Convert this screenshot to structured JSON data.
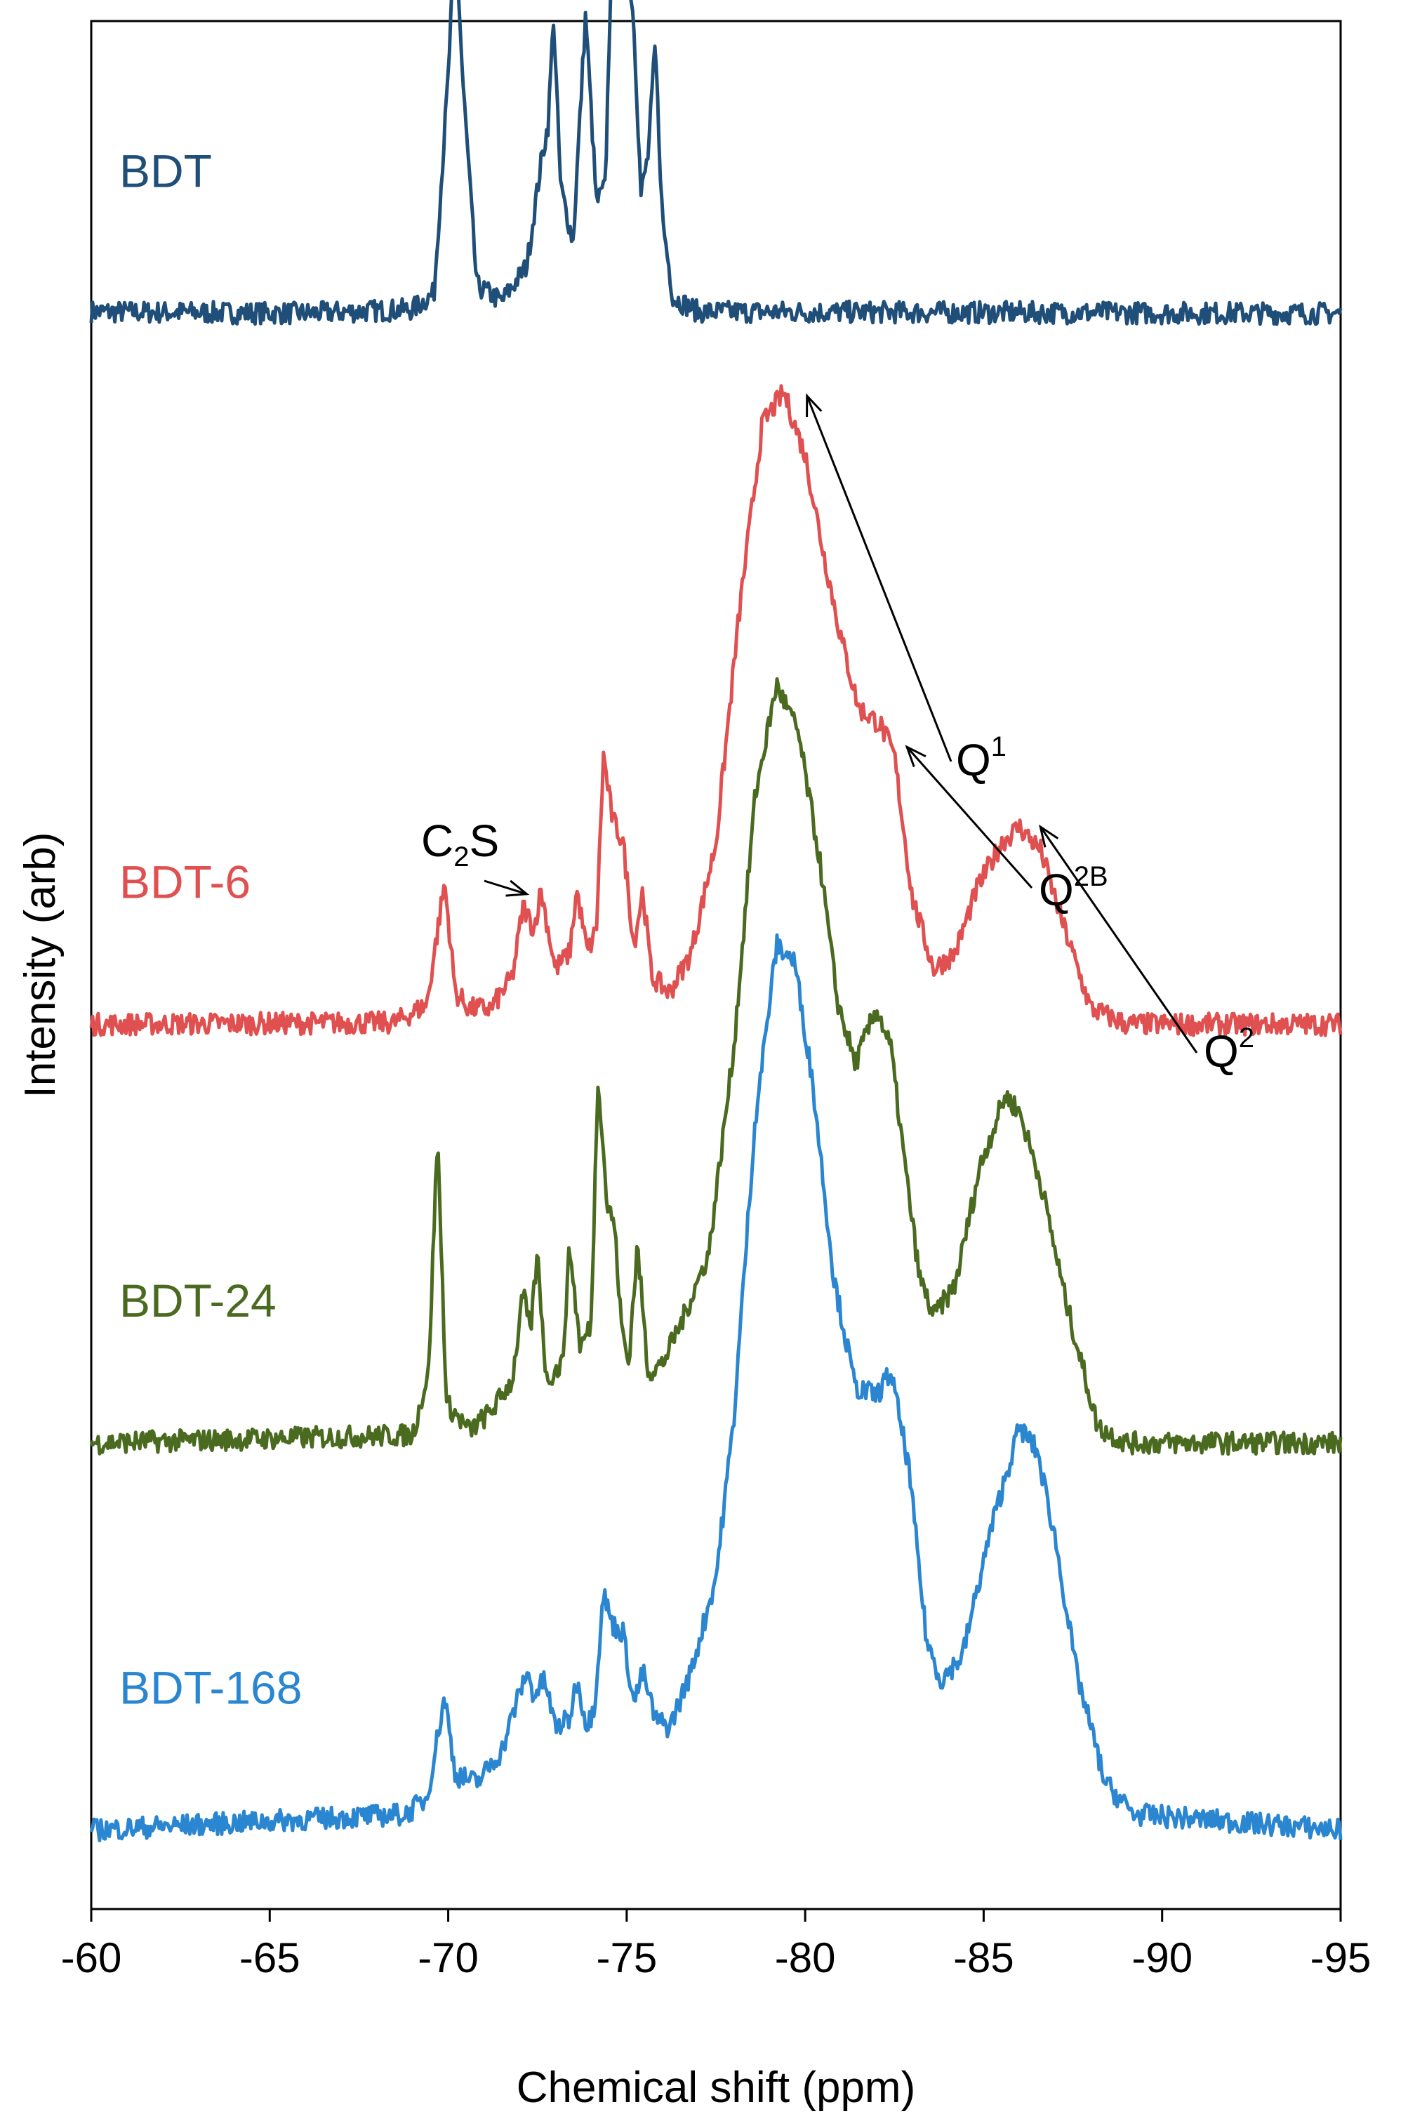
{
  "chart_data": {
    "type": "line",
    "title": "",
    "xlabel": "Chemical shift (ppm)",
    "ylabel": "Intensity (arb)",
    "xlim": [
      -60,
      -95
    ],
    "x_reversed": true,
    "x_ticks": [
      -60,
      -65,
      -70,
      -75,
      -80,
      -85,
      -90,
      -95
    ],
    "y_ticks": false,
    "grid": false,
    "legend": "none",
    "stacked_offset": true,
    "series": [
      {
        "name": "BDT",
        "color": "#1f4e79",
        "baseline": 9.0,
        "points": [
          [
            -60,
            0.02
          ],
          [
            -66,
            0
          ],
          [
            -69,
            0.05
          ],
          [
            -69.6,
            0.25
          ],
          [
            -70.0,
            3.0
          ],
          [
            -70.2,
            4.9
          ],
          [
            -70.4,
            3.0
          ],
          [
            -70.8,
            0.35
          ],
          [
            -71.5,
            0.15
          ],
          [
            -72.2,
            0.6
          ],
          [
            -72.6,
            1.9
          ],
          [
            -72.8,
            2.4
          ],
          [
            -72.95,
            3.75
          ],
          [
            -73.15,
            1.6
          ],
          [
            -73.5,
            0.9
          ],
          [
            -73.85,
            3.8
          ],
          [
            -74.15,
            1.4
          ],
          [
            -74.4,
            1.6
          ],
          [
            -74.6,
            5.0
          ],
          [
            -74.75,
            8.2
          ],
          [
            -74.9,
            5.2
          ],
          [
            -75.0,
            4.5
          ],
          [
            -75.2,
            3.7
          ],
          [
            -75.4,
            1.5
          ],
          [
            -75.6,
            2.0
          ],
          [
            -75.8,
            3.4
          ],
          [
            -76.0,
            1.2
          ],
          [
            -76.3,
            0.2
          ],
          [
            -77,
            0.02
          ],
          [
            -95,
            0
          ]
        ]
      },
      {
        "name": "BDT-6",
        "color": "#e05050",
        "baseline": 0.0,
        "points": [
          [
            -60,
            0
          ],
          [
            -68.5,
            0.02
          ],
          [
            -69.4,
            0.25
          ],
          [
            -69.9,
            1.8
          ],
          [
            -70.2,
            0.4
          ],
          [
            -70.6,
            0.2
          ],
          [
            -71.2,
            0.2
          ],
          [
            -71.8,
            0.6
          ],
          [
            -72.1,
            1.5
          ],
          [
            -72.4,
            1.2
          ],
          [
            -72.6,
            1.7
          ],
          [
            -73.0,
            0.7
          ],
          [
            -73.4,
            0.9
          ],
          [
            -73.6,
            1.7
          ],
          [
            -73.9,
            0.9
          ],
          [
            -74.15,
            1.2
          ],
          [
            -74.35,
            3.4
          ],
          [
            -74.6,
            2.6
          ],
          [
            -74.9,
            2.3
          ],
          [
            -75.2,
            1.0
          ],
          [
            -75.45,
            1.7
          ],
          [
            -75.7,
            0.6
          ],
          [
            -76.2,
            0.4
          ],
          [
            -76.8,
            0.9
          ],
          [
            -77.5,
            2.3
          ],
          [
            -78.2,
            5.4
          ],
          [
            -78.8,
            7.6
          ],
          [
            -79.4,
            8.0
          ],
          [
            -80.0,
            7.2
          ],
          [
            -80.5,
            6.0
          ],
          [
            -81.0,
            4.9
          ],
          [
            -81.5,
            4.0
          ],
          [
            -82.1,
            3.8
          ],
          [
            -82.5,
            3.4
          ],
          [
            -83.0,
            1.6
          ],
          [
            -83.6,
            0.7
          ],
          [
            -84.2,
            0.9
          ],
          [
            -84.8,
            1.7
          ],
          [
            -85.5,
            2.3
          ],
          [
            -86.0,
            2.5
          ],
          [
            -86.6,
            2.2
          ],
          [
            -87.2,
            1.3
          ],
          [
            -88.0,
            0.2
          ],
          [
            -89,
            0
          ],
          [
            -95,
            0
          ]
        ]
      },
      {
        "name": "BDT-24",
        "color": "#4a6b1f",
        "baseline": -5.3,
        "points": [
          [
            -60,
            0
          ],
          [
            -69,
            0.1
          ],
          [
            -69.45,
            0.9
          ],
          [
            -69.7,
            3.9
          ],
          [
            -69.95,
            0.5
          ],
          [
            -70.6,
            0.15
          ],
          [
            -71.2,
            0.4
          ],
          [
            -71.8,
            0.8
          ],
          [
            -72.1,
            1.9
          ],
          [
            -72.3,
            1.4
          ],
          [
            -72.5,
            2.4
          ],
          [
            -72.75,
            0.8
          ],
          [
            -73.2,
            1.0
          ],
          [
            -73.4,
            2.5
          ],
          [
            -73.7,
            1.2
          ],
          [
            -74.0,
            1.5
          ],
          [
            -74.2,
            4.7
          ],
          [
            -74.45,
            3.0
          ],
          [
            -74.65,
            2.8
          ],
          [
            -74.85,
            1.5
          ],
          [
            -75.05,
            1.0
          ],
          [
            -75.3,
            2.5
          ],
          [
            -75.6,
            0.9
          ],
          [
            -76.0,
            1.0
          ],
          [
            -76.6,
            1.6
          ],
          [
            -77.3,
            2.4
          ],
          [
            -78.0,
            5.0
          ],
          [
            -78.6,
            8.2
          ],
          [
            -79.2,
            9.6
          ],
          [
            -79.8,
            9.0
          ],
          [
            -80.4,
            7.4
          ],
          [
            -80.9,
            5.6
          ],
          [
            -81.4,
            4.8
          ],
          [
            -82.0,
            5.5
          ],
          [
            -82.4,
            5.0
          ],
          [
            -82.8,
            3.5
          ],
          [
            -83.2,
            2.1
          ],
          [
            -83.6,
            1.6
          ],
          [
            -84.2,
            2.0
          ],
          [
            -84.9,
            3.5
          ],
          [
            -85.6,
            4.4
          ],
          [
            -86.0,
            4.2
          ],
          [
            -86.6,
            3.3
          ],
          [
            -87.3,
            1.8
          ],
          [
            -88.2,
            0.2
          ],
          [
            -89,
            0
          ],
          [
            -95,
            0
          ]
        ]
      },
      {
        "name": "BDT-168",
        "color": "#2a86d0",
        "baseline": -10.2,
        "points": [
          [
            -60,
            0
          ],
          [
            -68.8,
            0.2
          ],
          [
            -69.4,
            0.4
          ],
          [
            -69.9,
            1.7
          ],
          [
            -70.2,
            0.7
          ],
          [
            -70.8,
            0.6
          ],
          [
            -71.5,
            1.0
          ],
          [
            -71.9,
            1.6
          ],
          [
            -72.2,
            2.0
          ],
          [
            -72.4,
            1.7
          ],
          [
            -72.7,
            1.9
          ],
          [
            -73.0,
            1.3
          ],
          [
            -73.4,
            1.4
          ],
          [
            -73.6,
            1.9
          ],
          [
            -73.9,
            1.3
          ],
          [
            -74.1,
            1.6
          ],
          [
            -74.35,
            3.0
          ],
          [
            -74.6,
            2.6
          ],
          [
            -74.9,
            2.5
          ],
          [
            -75.2,
            1.6
          ],
          [
            -75.45,
            2.0
          ],
          [
            -75.8,
            1.4
          ],
          [
            -76.2,
            1.3
          ],
          [
            -76.8,
            2.0
          ],
          [
            -77.5,
            3.2
          ],
          [
            -78.0,
            5.2
          ],
          [
            -78.6,
            9.0
          ],
          [
            -79.2,
            11.2
          ],
          [
            -79.7,
            11.0
          ],
          [
            -80.2,
            9.5
          ],
          [
            -80.8,
            7.0
          ],
          [
            -81.4,
            5.6
          ],
          [
            -82.0,
            5.5
          ],
          [
            -82.4,
            5.8
          ],
          [
            -82.9,
            4.6
          ],
          [
            -83.4,
            2.4
          ],
          [
            -83.8,
            1.9
          ],
          [
            -84.4,
            2.2
          ],
          [
            -85.2,
            3.8
          ],
          [
            -86.0,
            5.1
          ],
          [
            -86.5,
            4.8
          ],
          [
            -87.0,
            3.7
          ],
          [
            -87.6,
            2.0
          ],
          [
            -88.4,
            0.6
          ],
          [
            -89.2,
            0.2
          ],
          [
            -95,
            0
          ]
        ]
      }
    ],
    "labels": [
      {
        "text": "BDT",
        "series": "BDT"
      },
      {
        "text": "BDT-6",
        "series": "BDT-6"
      },
      {
        "text": "BDT-24",
        "series": "BDT-24"
      },
      {
        "text": "BDT-168",
        "series": "BDT-168"
      }
    ],
    "annotations": [
      {
        "text": "C",
        "sub": "2",
        "text2": "S",
        "points_to": {
          "series": "BDT-6",
          "x": -72.2
        }
      },
      {
        "text": "Q",
        "sup": "1",
        "points_to": {
          "series": "BDT-6",
          "x": -79.5
        }
      },
      {
        "text": "Q",
        "sup": "2B",
        "points_to": {
          "series": "BDT-6",
          "x": -82.3
        }
      },
      {
        "text": "Q",
        "sup": "2",
        "points_to": {
          "series": "BDT-6",
          "x": -86.0
        }
      }
    ]
  }
}
